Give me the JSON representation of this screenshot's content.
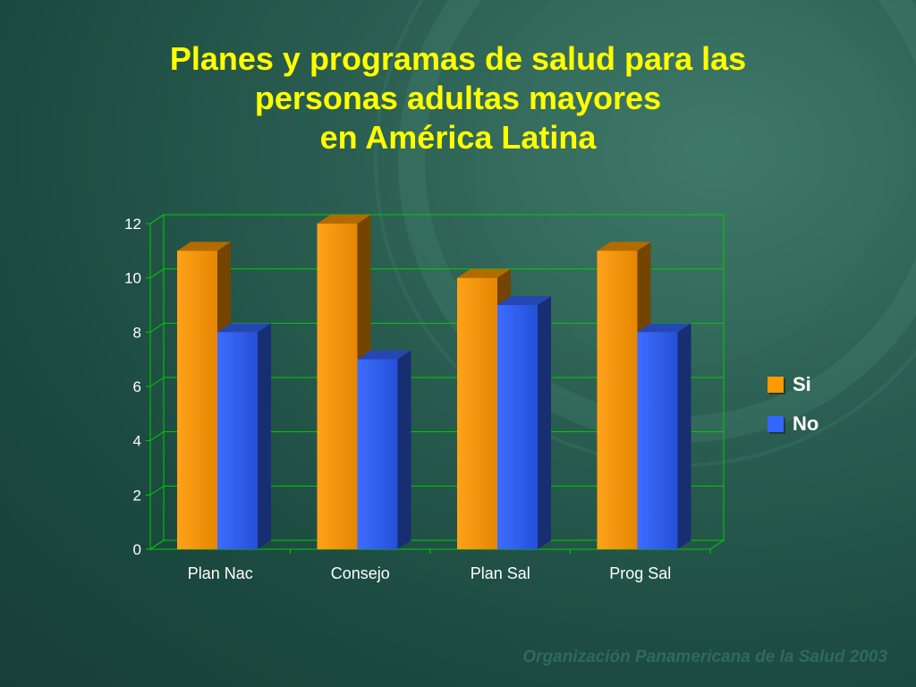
{
  "title_lines": [
    "Planes y programas de salud para las",
    "personas adultas mayores",
    "en América Latina"
  ],
  "footer": "Organización Panamericana de la Salud 2003",
  "colors": {
    "si": "#ff9900",
    "no": "#3366ff",
    "grid": "#00cc00",
    "title": "#ffff00",
    "background": "#1c4a40"
  },
  "chart_data": {
    "type": "bar",
    "categories": [
      "Plan Nac",
      "Consejo",
      "Plan Sal",
      "Prog Sal"
    ],
    "series": [
      {
        "name": "Si",
        "values": [
          11,
          12,
          10,
          11
        ]
      },
      {
        "name": "No",
        "values": [
          8,
          7,
          9,
          8
        ]
      }
    ],
    "ylim": [
      0,
      12
    ],
    "yticks": [
      "0",
      "2",
      "4",
      "6",
      "8",
      "10",
      "12"
    ],
    "grid": true,
    "style": "3d-column",
    "legend_position": "right"
  }
}
